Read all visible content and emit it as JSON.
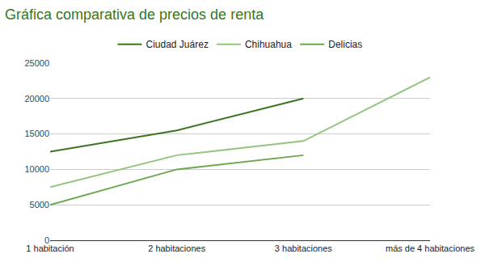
{
  "chart_data": {
    "type": "line",
    "title": "Gráfica comparativa de precios de renta",
    "categories": [
      "1 habitación",
      "2 habitaciones",
      "3 habitaciones",
      "más de 4 habitaciones"
    ],
    "series": [
      {
        "name": "Ciudad Juárez",
        "color": "#38761d",
        "values": [
          12500,
          15500,
          20000,
          null
        ]
      },
      {
        "name": "Chihuahua",
        "color": "#93c47d",
        "values": [
          7500,
          12000,
          14000,
          23000
        ]
      },
      {
        "name": "Delicias",
        "color": "#6aa84f",
        "values": [
          5000,
          10000,
          12000,
          null
        ]
      }
    ],
    "ylim": [
      0,
      25000
    ],
    "yticks": [
      0,
      5000,
      10000,
      15000,
      20000,
      25000
    ],
    "grid": true,
    "legend": "top",
    "marker": "none"
  }
}
